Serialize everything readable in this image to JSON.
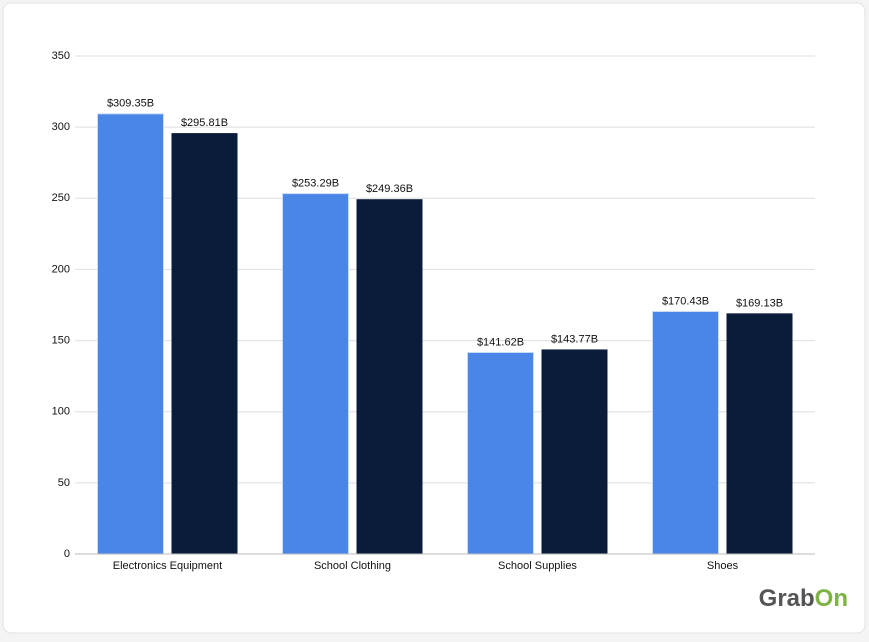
{
  "chart_data": {
    "type": "grouped-bar",
    "categories": [
      "Electronics Equipment",
      "School Clothing",
      "School Supplies",
      "Shoes"
    ],
    "series": [
      {
        "color": "#4a86e8",
        "values": [
          309.35,
          253.29,
          141.62,
          170.43
        ],
        "value_labels": [
          "$309.35B",
          "$253.29B",
          "$141.62B",
          "$170.43B"
        ]
      },
      {
        "color": "#0b1c3a",
        "values": [
          295.81,
          249.36,
          143.77,
          169.13
        ],
        "value_labels": [
          "$295.81B",
          "$249.36B",
          "$143.77B",
          "$169.13B"
        ]
      }
    ],
    "ylim": [
      0,
      350
    ],
    "yticks": [
      0,
      50,
      100,
      150,
      200,
      250,
      300,
      350
    ],
    "grid": true
  },
  "logo": {
    "left": "Grab",
    "right": "On"
  }
}
